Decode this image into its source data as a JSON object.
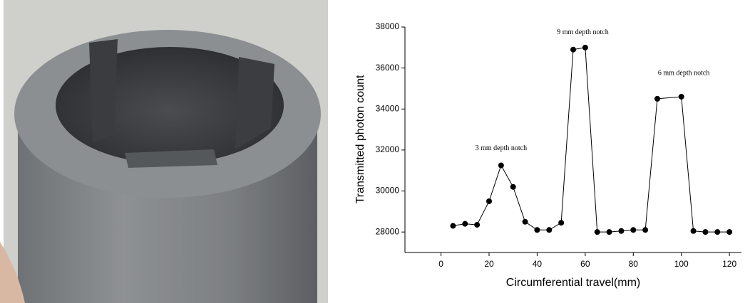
{
  "chart_data": {
    "type": "line",
    "x_label": "Circumferential travel(mm)",
    "y_label": "Transmitted photon count",
    "x": [
      5,
      10,
      15,
      20,
      25,
      30,
      35,
      40,
      45,
      50,
      55,
      60,
      65,
      70,
      75,
      80,
      85,
      90,
      100,
      105,
      110,
      115,
      120
    ],
    "values": [
      28300,
      28400,
      28350,
      29500,
      31250,
      30200,
      28500,
      28100,
      28100,
      28450,
      36900,
      37000,
      28000,
      28000,
      28050,
      28100,
      28100,
      34500,
      34600,
      28050,
      28000,
      28000,
      28000
    ],
    "color": "#000000",
    "xlim": [
      -15,
      125
    ],
    "xticks": [
      0,
      20,
      40,
      60,
      80,
      100,
      120
    ],
    "ylim": [
      27000,
      38000
    ],
    "yticks": [
      28000,
      30000,
      32000,
      34000,
      36000,
      38000
    ],
    "annotations": [
      {
        "text": "3  mm depth notch",
        "x": 25,
        "y": 32000
      },
      {
        "text": "9 mm depth notch",
        "x": 59,
        "y": 37650
      },
      {
        "text": "6  mm depth notch",
        "x": 101,
        "y": 35650
      }
    ]
  }
}
